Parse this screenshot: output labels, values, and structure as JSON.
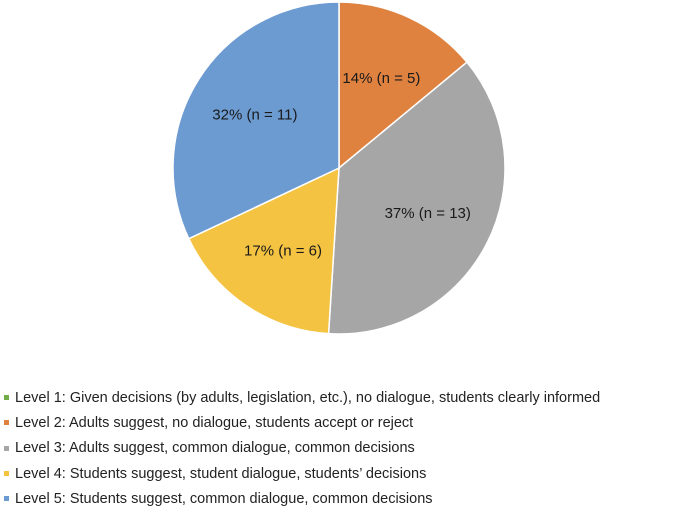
{
  "chart_data": {
    "type": "pie",
    "title": "",
    "start_angle_deg": 0,
    "direction": "clockwise",
    "slices": [
      {
        "legend": "Level 1: Given decisions (by adults, legislation, etc.), no dialogue, students clearly informed",
        "percent": 0,
        "n": 0,
        "label": "",
        "color": "#70ad47"
      },
      {
        "legend": "Level 2: Adults suggest, no dialogue, students accept or reject",
        "percent": 14,
        "n": 5,
        "label": "14% (n = 5)",
        "color": "#e0823f"
      },
      {
        "legend": "Level 3: Adults suggest, common dialogue, common decisions",
        "percent": 37,
        "n": 13,
        "label": "37% (n = 13)",
        "color": "#a6a6a6"
      },
      {
        "legend": "Level 4: Students suggest, student dialogue, students’ decisions",
        "percent": 17,
        "n": 6,
        "label": "17% (n = 6)",
        "color": "#f4c342"
      },
      {
        "legend": "Level 5: Students suggest, common dialogue, common decisions",
        "percent": 32,
        "n": 11,
        "label": "32% (n = 11)",
        "color": "#6c9bd2"
      }
    ],
    "legend_position": "bottom"
  }
}
